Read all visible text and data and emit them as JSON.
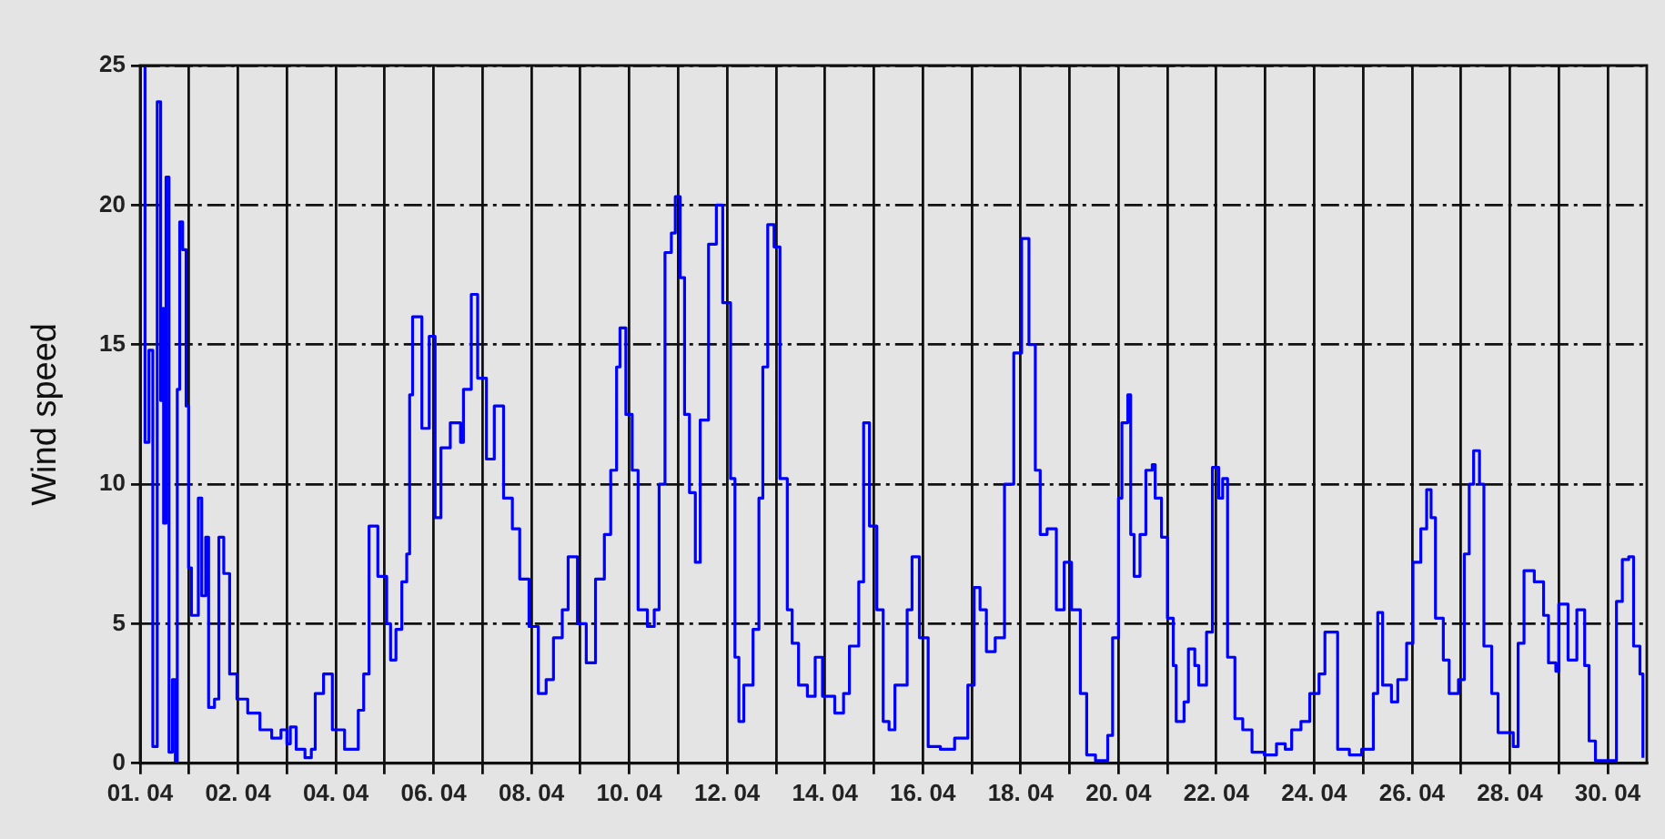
{
  "chart_data": {
    "type": "step",
    "ylabel": "Wind speed",
    "grid": true,
    "legend": false,
    "marker": "none",
    "line_style": "solid",
    "xlim": [
      "--03-31T00:00",
      "--04-30T19:12"
    ],
    "xticks": [
      {
        "value": "--03-31",
        "label": "01. 04"
      },
      {
        "value": "--04-01",
        "label": null
      },
      {
        "value": "--04-02",
        "label": "02. 04"
      },
      {
        "value": "--04-03",
        "label": null
      },
      {
        "value": "--04-04",
        "label": "04. 04"
      },
      {
        "value": "--04-05",
        "label": null
      },
      {
        "value": "--04-06",
        "label": "06. 04"
      },
      {
        "value": "--04-07",
        "label": null
      },
      {
        "value": "--04-08",
        "label": "08. 04"
      },
      {
        "value": "--04-09",
        "label": null
      },
      {
        "value": "--04-10",
        "label": "10. 04"
      },
      {
        "value": "--04-11",
        "label": null
      },
      {
        "value": "--04-12",
        "label": "12. 04"
      },
      {
        "value": "--04-13",
        "label": null
      },
      {
        "value": "--04-14",
        "label": "14. 04"
      },
      {
        "value": "--04-15",
        "label": null
      },
      {
        "value": "--04-16",
        "label": "16. 04"
      },
      {
        "value": "--04-17",
        "label": null
      },
      {
        "value": "--04-18",
        "label": "18. 04"
      },
      {
        "value": "--04-19",
        "label": null
      },
      {
        "value": "--04-20",
        "label": "20. 04"
      },
      {
        "value": "--04-21",
        "label": null
      },
      {
        "value": "--04-22",
        "label": "22. 04"
      },
      {
        "value": "--04-23",
        "label": null
      },
      {
        "value": "--04-24",
        "label": "24. 04"
      },
      {
        "value": "--04-25",
        "label": null
      },
      {
        "value": "--04-26",
        "label": "26. 04"
      },
      {
        "value": "--04-27",
        "label": null
      },
      {
        "value": "--04-28",
        "label": "28. 04"
      },
      {
        "value": "--04-29",
        "label": null
      },
      {
        "value": "--04-30",
        "label": "30. 04"
      }
    ],
    "ylim": [
      0,
      25
    ],
    "yticks": [
      0,
      5,
      10,
      15,
      20,
      25
    ],
    "series": [
      {
        "color": "#0000ff",
        "x": [
          "--03-31T01:12",
          "--03-31T02:24",
          "--03-31T04:19",
          "--03-31T06:14",
          "--03-31T08:24",
          "--03-31T10:05",
          "--03-31T11:17",
          "--03-31T11:31",
          "--03-31T12:43",
          "--03-31T14:10",
          "--03-31T15:50",
          "--03-31T17:17",
          "--03-31T18:14",
          "--03-31T19:26",
          "--03-31T20:53",
          "--03-31T22:34",
          "--03-31T23:46",
          "--04-01T01:12",
          "--04-01T04:34",
          "--04-01T06:14",
          "--04-01T08:10",
          "--04-01T09:36",
          "--04-01T12:29",
          "--04-01T14:38",
          "--04-01T17:02",
          "--04-01T19:55",
          "--04-01T23:31",
          "--04-02T04:48",
          "--04-02T10:48",
          "--04-02T16:34",
          "--04-02T21:07",
          "--04-03T00:00",
          "--04-03T01:41",
          "--04-03T04:34",
          "--04-03T08:53",
          "--04-03T12:00",
          "--04-03T13:55",
          "--04-03T18:00",
          "--04-03T22:19",
          "--04-04T04:19",
          "--04-04T07:55",
          "--04-04T11:02",
          "--04-04T13:41",
          "--04-04T16:19",
          "--04-04T20:38",
          "--04-05T00:58",
          "--04-05T02:53",
          "--04-05T05:31",
          "--04-05T08:24",
          "--04-05T10:48",
          "--04-05T12:14",
          "--04-05T13:41",
          "--04-05T18:14",
          "--04-05T21:50",
          "--04-06T00:43",
          "--04-06T03:36",
          "--04-06T08:10",
          "--04-06T13:12",
          "--04-06T14:38",
          "--04-06T18:29",
          "--04-06T21:36",
          "--04-07T01:55",
          "--04-07T05:46",
          "--04-07T10:19",
          "--04-07T14:38",
          "--04-07T18:14",
          "--04-07T22:48",
          "--04-08T03:22",
          "--04-08T07:12",
          "--04-08T10:48",
          "--04-08T15:07",
          "--04-08T18:00",
          "--04-08T22:34",
          "--04-09T02:53",
          "--04-09T07:26",
          "--04-09T11:46",
          "--04-09T14:53",
          "--04-09T17:46",
          "--04-09T19:26",
          "--04-09T22:19",
          "--04-10T01:26",
          "--04-10T04:19",
          "--04-10T08:53",
          "--04-10T12:14",
          "--04-10T14:38",
          "--04-10T17:31",
          "--04-10T20:38",
          "--04-10T22:34",
          "--04-11T00:58",
          "--04-11T03:07",
          "--04-11T05:31",
          "--04-11T08:24",
          "--04-11T10:48",
          "--04-11T14:53",
          "--04-11T18:43",
          "--04-11T21:50",
          "--04-12T01:41",
          "--04-12T03:50",
          "--04-12T05:46",
          "--04-12T08:10",
          "--04-12T12:43",
          "--04-12T15:36",
          "--04-12T17:31",
          "--04-12T19:55",
          "--04-12T23:02",
          "--04-13T01:55",
          "--04-13T05:31",
          "--04-13T07:55",
          "--04-13T11:02",
          "--04-13T15:22",
          "--04-13T19:12",
          "--04-13T22:48",
          "--04-14T04:48",
          "--04-14T09:07",
          "--04-14T12:00",
          "--04-14T16:34",
          "--04-14T18:58",
          "--04-14T21:50",
          "--04-15T01:26",
          "--04-15T04:34",
          "--04-15T07:26",
          "--04-15T10:19",
          "--04-15T16:19",
          "--04-15T18:43",
          "--04-15T22:19",
          "--04-16T02:38",
          "--04-16T08:38",
          "--04-16T15:36",
          "--04-16T22:05",
          "--04-17T01:12",
          "--04-17T04:05",
          "--04-17T07:12",
          "--04-17T11:31",
          "--04-17T16:05",
          "--04-17T20:38",
          "--04-18T00:29",
          "--04-18T04:05",
          "--04-18T07:12",
          "--04-18T09:36",
          "--04-18T12:58",
          "--04-18T17:31",
          "--04-18T21:22",
          "--04-19T00:58",
          "--04-19T05:17",
          "--04-19T08:24",
          "--04-19T12:43",
          "--04-19T18:43",
          "--04-19T21:07",
          "--04-20T00:00",
          "--04-20T01:41",
          "--04-20T04:34",
          "--04-20T06:00",
          "--04-20T07:41",
          "--04-20T10:34",
          "--04-20T13:26",
          "--04-20T16:34",
          "--04-20T18:00",
          "--04-20T21:07",
          "--04-21T00:00",
          "--04-21T02:53",
          "--04-21T04:19",
          "--04-21T08:10",
          "--04-21T10:19",
          "--04-21T13:26",
          "--04-21T15:22",
          "--04-21T19:12",
          "--04-21T22:05",
          "--04-22T01:12",
          "--04-22T03:07",
          "--04-22T05:31",
          "--04-22T09:07",
          "--04-22T12:58",
          "--04-22T17:31",
          "--04-22T23:31",
          "--04-23T05:31",
          "--04-23T09:50",
          "--04-23T12:58",
          "--04-23T17:31",
          "--04-23T21:50",
          "--04-24T02:24",
          "--04-24T05:17",
          "--04-24T08:24",
          "--04-24T11:31",
          "--04-24T17:17",
          "--04-24T23:17",
          "--04-25T05:02",
          "--04-25T07:12",
          "--04-25T09:36",
          "--04-25T13:55",
          "--04-25T17:02",
          "--04-25T21:22",
          "--04-26T00:29",
          "--04-26T04:19",
          "--04-26T07:12",
          "--04-26T09:22",
          "--04-26T11:31",
          "--04-26T15:22",
          "--04-26T18:14",
          "--04-26T22:48",
          "--04-27T01:41",
          "--04-27T04:05",
          "--04-27T06:14",
          "--04-27T09:07",
          "--04-27T11:17",
          "--04-27T15:07",
          "--04-27T18:14",
          "--04-28T01:41",
          "--04-28T04:05",
          "--04-28T06:58",
          "--04-28T12:00",
          "--04-28T16:34",
          "--04-28T18:58",
          "--04-28T22:34",
          "--04-29T00:00",
          "--04-29T04:34",
          "--04-29T08:53",
          "--04-29T12:43",
          "--04-29T14:53",
          "--04-29T18:00",
          "--04-30T01:26",
          "--04-30T04:19",
          "--04-30T07:12",
          "--04-30T10:19",
          "--04-30T12:43",
          "--04-30T15:50",
          "--04-30T17:17"
        ],
        "values": [
          25,
          11.5,
          14.8,
          0.6,
          23.7,
          13,
          16.3,
          8.6,
          21,
          0.4,
          3,
          0,
          13.4,
          19.4,
          18.4,
          12.8,
          7,
          5.3,
          9.5,
          6,
          8.1,
          2,
          2.3,
          8.1,
          6.8,
          3.2,
          2.3,
          1.8,
          1.2,
          0.9,
          1.2,
          0.7,
          1.3,
          0.5,
          0.2,
          0.5,
          2.5,
          3.2,
          1.2,
          0.5,
          0.5,
          1.9,
          3.2,
          8.5,
          6.7,
          5,
          3.7,
          4.8,
          6.5,
          7.5,
          13.2,
          16,
          12,
          15.3,
          8.8,
          11.3,
          12.2,
          11.5,
          13.4,
          16.8,
          13.8,
          10.9,
          12.8,
          9.5,
          8.4,
          6.6,
          4.9,
          2.5,
          3,
          4.5,
          5.5,
          7.4,
          5,
          3.6,
          6.6,
          8.2,
          10.5,
          14.2,
          15.6,
          12.5,
          10.5,
          5.5,
          4.9,
          5.5,
          10,
          18.3,
          19,
          20.3,
          17.4,
          12.5,
          9.7,
          7.2,
          12.3,
          18.6,
          20,
          16.5,
          10.2,
          3.8,
          1.5,
          2.8,
          4.8,
          9.5,
          14.2,
          19.3,
          18.5,
          10.2,
          5.5,
          4.3,
          2.8,
          2.4,
          3.8,
          2.4,
          1.8,
          2.5,
          4.2,
          6.5,
          12.2,
          8.5,
          5.5,
          1.5,
          1.2,
          2.8,
          5.5,
          7.4,
          4.5,
          0.6,
          0.5,
          0.9,
          2.8,
          6.3,
          5.5,
          4,
          4.5,
          10,
          14.7,
          18.8,
          15,
          10.5,
          8.2,
          8.4,
          5.5,
          7.2,
          5.5,
          2.5,
          0.3,
          0.1,
          1,
          4.5,
          9.5,
          12.2,
          13.2,
          8.2,
          6.7,
          8.2,
          10.5,
          10.7,
          9.5,
          8.1,
          5.2,
          3.5,
          1.5,
          2.2,
          4.1,
          3.5,
          2.8,
          4.7,
          10.6,
          9.5,
          10.2,
          3.8,
          1.6,
          1.2,
          0.4,
          0.3,
          0.7,
          0.5,
          1.2,
          1.5,
          2.5,
          3.2,
          4.7,
          4.7,
          0.5,
          0.3,
          0.5,
          2.5,
          5.4,
          2.8,
          2.2,
          3,
          4.3,
          7.2,
          8.4,
          9.8,
          8.8,
          5.2,
          3.7,
          2.5,
          3,
          7.5,
          10,
          11.2,
          10,
          4.2,
          2.5,
          1.1,
          0.6,
          4.3,
          6.9,
          6.5,
          5.3,
          3.6,
          3.3,
          5.7,
          3.7,
          5.5,
          3.5,
          0.8,
          0.1,
          0.1,
          5.8,
          7.3,
          7.4,
          4.2,
          3.2,
          0.2
        ]
      }
    ]
  }
}
